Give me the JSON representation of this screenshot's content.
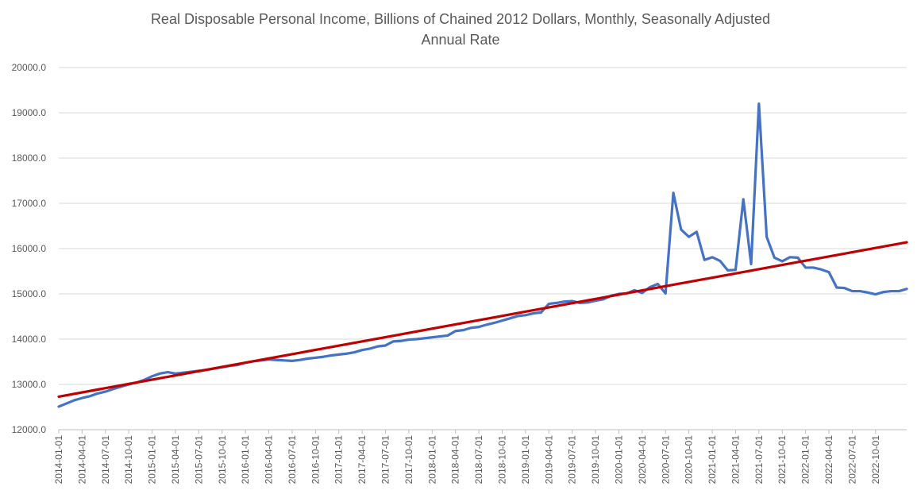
{
  "chart_data": {
    "type": "line",
    "title_line1": "Real Disposable Personal Income, Billions of Chained 2012 Dollars, Monthly, Seasonally Adjusted",
    "title_line2": "Annual Rate",
    "xlabel": "",
    "ylabel": "",
    "ylim": [
      12000,
      20000
    ],
    "grid": true,
    "legend": "none",
    "y_ticks": [
      "12000.0",
      "13000.0",
      "14000.0",
      "15000.0",
      "16000.0",
      "17000.0",
      "18000.0",
      "19000.0",
      "20000.0"
    ],
    "x_tick_labels": [
      "2014-01-01",
      "2014-04-01",
      "2014-07-01",
      "2014-10-01",
      "2015-01-01",
      "2015-04-01",
      "2015-07-01",
      "2015-10-01",
      "2016-01-01",
      "2016-04-01",
      "2016-07-01",
      "2016-10-01",
      "2017-01-01",
      "2017-04-01",
      "2017-07-01",
      "2017-10-01",
      "2018-01-01",
      "2018-04-01",
      "2018-07-01",
      "2018-10-01",
      "2019-01-01",
      "2019-04-01",
      "2019-07-01",
      "2019-10-01",
      "2020-01-01",
      "2020-04-01",
      "2020-07-01",
      "2020-10-01",
      "2021-01-01",
      "2021-04-01",
      "2021-07-01",
      "2021-10-01",
      "2022-01-01",
      "2022-04-01",
      "2022-07-01",
      "2022-10-01"
    ],
    "series": [
      {
        "color": "#4472c4",
        "x_start": "2014-01-01",
        "frequency": "monthly",
        "values": [
          12510,
          12580,
          12650,
          12700,
          12740,
          12800,
          12840,
          12900,
          12950,
          13000,
          13040,
          13100,
          13180,
          13240,
          13270,
          13240,
          13260,
          13280,
          13300,
          13320,
          13350,
          13380,
          13410,
          13430,
          13480,
          13510,
          13530,
          13550,
          13540,
          13530,
          13520,
          13540,
          13570,
          13590,
          13610,
          13640,
          13660,
          13680,
          13710,
          13760,
          13790,
          13840,
          13860,
          13950,
          13960,
          13990,
          14000,
          14020,
          14040,
          14060,
          14080,
          14180,
          14200,
          14250,
          14270,
          14320,
          14360,
          14410,
          14460,
          14510,
          14530,
          14570,
          14590,
          14780,
          14800,
          14830,
          14840,
          14800,
          14810,
          14850,
          14880,
          14960,
          15000,
          15010,
          15080,
          15020,
          15150,
          15220,
          15010,
          17230,
          16420,
          16260,
          16370,
          15750,
          15810,
          15730,
          15520,
          15530,
          17090,
          15660,
          19200,
          16260,
          15800,
          15720,
          15810,
          15800,
          15580,
          15580,
          15540,
          15480,
          15140,
          15130,
          15060,
          15060,
          15030,
          14990,
          15040,
          15060,
          15060,
          15110
        ]
      },
      {
        "color": "#c00000",
        "kind": "linear trend",
        "start_value": 12730,
        "end_value": 16140
      }
    ]
  }
}
